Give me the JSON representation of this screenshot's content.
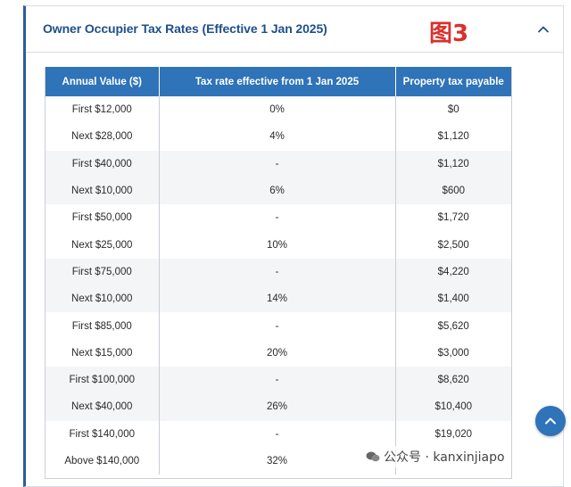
{
  "section": {
    "title": "Owner Occupier Tax Rates (Effective 1 Jan 2025)",
    "figure_label": "图3"
  },
  "table": {
    "headers": [
      "Annual Value ($)",
      "Tax rate effective from 1 Jan 2025",
      "Property tax payable"
    ],
    "rows": [
      [
        "First $12,000",
        "0%",
        "$0"
      ],
      [
        "Next $28,000",
        "4%",
        "$1,120"
      ],
      [
        "First $40,000",
        "-",
        "$1,120"
      ],
      [
        "Next $10,000",
        "6%",
        "$600"
      ],
      [
        "First $50,000",
        "-",
        "$1,720"
      ],
      [
        "Next $25,000",
        "10%",
        "$2,500"
      ],
      [
        "First $75,000",
        "-",
        "$4,220"
      ],
      [
        "Next $10,000",
        "14%",
        "$1,400"
      ],
      [
        "First $85,000",
        "-",
        "$5,620"
      ],
      [
        "Next $15,000",
        "20%",
        "$3,000"
      ],
      [
        "First $100,000",
        "-",
        "$8,620"
      ],
      [
        "Next $40,000",
        "26%",
        "$10,400"
      ],
      [
        "First $140,000",
        "-",
        "$19,020"
      ],
      [
        "Above $140,000",
        "32%",
        ""
      ]
    ]
  },
  "watermark": {
    "text": "公众号 · kanxinjiapo"
  },
  "icons": {
    "collapse": "chevron-up-icon",
    "scroll_top": "arrow-up-icon",
    "watermark": "wechat-icon"
  },
  "colors": {
    "accent": "#2f73b8",
    "title": "#1f4f8b",
    "figure_label": "#d9302c"
  }
}
